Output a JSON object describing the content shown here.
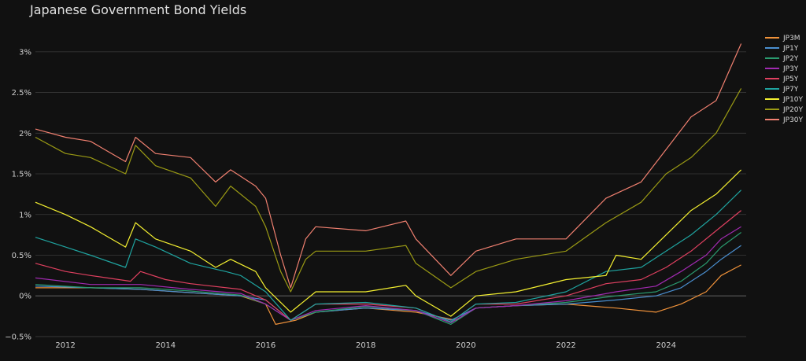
{
  "chart_data": {
    "type": "line",
    "title": "Japanese Government Bond Yields",
    "xlabel": "",
    "ylabel": "",
    "x_ticks": [
      "2012",
      "2014",
      "2016",
      "2018",
      "2020",
      "2022",
      "2024"
    ],
    "y_ticks": [
      "−0.5%",
      "0%",
      "0.5%",
      "1%",
      "1.5%",
      "2%",
      "2.5%",
      "3%"
    ],
    "xlim": [
      2011.4,
      2025.6
    ],
    "ylim": [
      -0.52,
      3.25
    ],
    "grid": true,
    "legend_position": "right",
    "series": [
      {
        "name": "JP3M",
        "color": "#f0923a",
        "points": [
          [
            2011.4,
            0.1
          ],
          [
            2012.5,
            0.1
          ],
          [
            2013.5,
            0.08
          ],
          [
            2014.5,
            0.04
          ],
          [
            2015.5,
            0.0
          ],
          [
            2016.0,
            -0.1
          ],
          [
            2016.2,
            -0.35
          ],
          [
            2016.6,
            -0.3
          ],
          [
            2017.0,
            -0.2
          ],
          [
            2018.0,
            -0.15
          ],
          [
            2019.0,
            -0.2
          ],
          [
            2019.8,
            -0.3
          ],
          [
            2020.2,
            -0.15
          ],
          [
            2021.0,
            -0.12
          ],
          [
            2022.0,
            -0.1
          ],
          [
            2023.0,
            -0.15
          ],
          [
            2023.8,
            -0.2
          ],
          [
            2024.3,
            -0.1
          ],
          [
            2024.8,
            0.05
          ],
          [
            2025.1,
            0.25
          ],
          [
            2025.5,
            0.38
          ]
        ]
      },
      {
        "name": "JP1Y",
        "color": "#4a8fd0",
        "points": [
          [
            2011.4,
            0.12
          ],
          [
            2012.5,
            0.1
          ],
          [
            2013.5,
            0.08
          ],
          [
            2014.5,
            0.04
          ],
          [
            2015.5,
            0.0
          ],
          [
            2016.0,
            -0.05
          ],
          [
            2016.5,
            -0.3
          ],
          [
            2017.0,
            -0.2
          ],
          [
            2018.0,
            -0.15
          ],
          [
            2019.0,
            -0.18
          ],
          [
            2019.7,
            -0.3
          ],
          [
            2020.2,
            -0.15
          ],
          [
            2021.0,
            -0.12
          ],
          [
            2022.0,
            -0.1
          ],
          [
            2023.0,
            -0.05
          ],
          [
            2023.8,
            0.0
          ],
          [
            2024.3,
            0.1
          ],
          [
            2024.8,
            0.3
          ],
          [
            2025.1,
            0.45
          ],
          [
            2025.5,
            0.62
          ]
        ]
      },
      {
        "name": "JP2Y",
        "color": "#2a9a6e",
        "points": [
          [
            2011.4,
            0.14
          ],
          [
            2012.5,
            0.1
          ],
          [
            2013.5,
            0.1
          ],
          [
            2014.5,
            0.06
          ],
          [
            2015.5,
            0.01
          ],
          [
            2016.0,
            -0.1
          ],
          [
            2016.5,
            -0.3
          ],
          [
            2017.0,
            -0.2
          ],
          [
            2018.0,
            -0.13
          ],
          [
            2019.0,
            -0.18
          ],
          [
            2019.7,
            -0.35
          ],
          [
            2020.2,
            -0.15
          ],
          [
            2021.0,
            -0.12
          ],
          [
            2022.0,
            -0.08
          ],
          [
            2023.0,
            0.0
          ],
          [
            2023.8,
            0.05
          ],
          [
            2024.3,
            0.18
          ],
          [
            2024.8,
            0.4
          ],
          [
            2025.1,
            0.6
          ],
          [
            2025.5,
            0.78
          ]
        ]
      },
      {
        "name": "JP3Y",
        "color": "#a02ab0",
        "points": [
          [
            2011.4,
            0.22
          ],
          [
            2012.5,
            0.14
          ],
          [
            2013.5,
            0.14
          ],
          [
            2014.5,
            0.08
          ],
          [
            2015.5,
            0.03
          ],
          [
            2016.0,
            -0.1
          ],
          [
            2016.5,
            -0.3
          ],
          [
            2017.0,
            -0.18
          ],
          [
            2018.0,
            -0.12
          ],
          [
            2019.0,
            -0.18
          ],
          [
            2019.7,
            -0.33
          ],
          [
            2020.2,
            -0.15
          ],
          [
            2021.0,
            -0.12
          ],
          [
            2022.0,
            -0.06
          ],
          [
            2023.0,
            0.05
          ],
          [
            2023.8,
            0.12
          ],
          [
            2024.3,
            0.3
          ],
          [
            2024.8,
            0.5
          ],
          [
            2025.1,
            0.7
          ],
          [
            2025.5,
            0.85
          ]
        ]
      },
      {
        "name": "JP5Y",
        "color": "#e04060",
        "points": [
          [
            2011.4,
            0.4
          ],
          [
            2012.0,
            0.3
          ],
          [
            2012.5,
            0.25
          ],
          [
            2013.3,
            0.18
          ],
          [
            2013.5,
            0.3
          ],
          [
            2014.0,
            0.2
          ],
          [
            2014.5,
            0.15
          ],
          [
            2015.5,
            0.08
          ],
          [
            2016.0,
            -0.05
          ],
          [
            2016.5,
            -0.3
          ],
          [
            2017.0,
            -0.1
          ],
          [
            2018.0,
            -0.1
          ],
          [
            2019.0,
            -0.15
          ],
          [
            2019.7,
            -0.32
          ],
          [
            2020.2,
            -0.1
          ],
          [
            2021.0,
            -0.1
          ],
          [
            2022.0,
            0.0
          ],
          [
            2022.8,
            0.15
          ],
          [
            2023.5,
            0.2
          ],
          [
            2024.0,
            0.35
          ],
          [
            2024.5,
            0.55
          ],
          [
            2025.0,
            0.8
          ],
          [
            2025.5,
            1.05
          ]
        ]
      },
      {
        "name": "JP7Y",
        "color": "#1fa4a0",
        "points": [
          [
            2011.4,
            0.72
          ],
          [
            2012.0,
            0.6
          ],
          [
            2012.5,
            0.5
          ],
          [
            2013.2,
            0.35
          ],
          [
            2013.4,
            0.7
          ],
          [
            2013.8,
            0.6
          ],
          [
            2014.5,
            0.4
          ],
          [
            2015.2,
            0.3
          ],
          [
            2015.5,
            0.25
          ],
          [
            2016.0,
            0.05
          ],
          [
            2016.5,
            -0.3
          ],
          [
            2017.0,
            -0.1
          ],
          [
            2018.0,
            -0.08
          ],
          [
            2019.0,
            -0.15
          ],
          [
            2019.7,
            -0.32
          ],
          [
            2020.2,
            -0.1
          ],
          [
            2021.0,
            -0.08
          ],
          [
            2022.0,
            0.05
          ],
          [
            2022.8,
            0.3
          ],
          [
            2023.5,
            0.35
          ],
          [
            2024.0,
            0.55
          ],
          [
            2024.5,
            0.75
          ],
          [
            2025.0,
            1.0
          ],
          [
            2025.5,
            1.3
          ]
        ]
      },
      {
        "name": "JP10Y",
        "color": "#f4f030",
        "points": [
          [
            2011.4,
            1.15
          ],
          [
            2012.0,
            1.0
          ],
          [
            2012.5,
            0.85
          ],
          [
            2013.2,
            0.6
          ],
          [
            2013.4,
            0.9
          ],
          [
            2013.8,
            0.7
          ],
          [
            2014.5,
            0.55
          ],
          [
            2015.0,
            0.35
          ],
          [
            2015.3,
            0.45
          ],
          [
            2015.8,
            0.3
          ],
          [
            2016.0,
            0.1
          ],
          [
            2016.5,
            -0.2
          ],
          [
            2017.0,
            0.05
          ],
          [
            2018.0,
            0.05
          ],
          [
            2018.8,
            0.13
          ],
          [
            2019.0,
            0.0
          ],
          [
            2019.7,
            -0.25
          ],
          [
            2020.2,
            0.0
          ],
          [
            2021.0,
            0.05
          ],
          [
            2022.0,
            0.2
          ],
          [
            2022.8,
            0.25
          ],
          [
            2023.0,
            0.5
          ],
          [
            2023.5,
            0.45
          ],
          [
            2024.0,
            0.75
          ],
          [
            2024.5,
            1.05
          ],
          [
            2025.0,
            1.25
          ],
          [
            2025.5,
            1.55
          ]
        ]
      },
      {
        "name": "JP20Y",
        "color": "#9a9a14",
        "points": [
          [
            2011.4,
            1.95
          ],
          [
            2012.0,
            1.75
          ],
          [
            2012.5,
            1.7
          ],
          [
            2013.2,
            1.5
          ],
          [
            2013.4,
            1.85
          ],
          [
            2013.8,
            1.6
          ],
          [
            2014.5,
            1.45
          ],
          [
            2015.0,
            1.1
          ],
          [
            2015.3,
            1.35
          ],
          [
            2015.8,
            1.1
          ],
          [
            2016.0,
            0.85
          ],
          [
            2016.3,
            0.3
          ],
          [
            2016.5,
            0.05
          ],
          [
            2016.8,
            0.45
          ],
          [
            2017.0,
            0.55
          ],
          [
            2018.0,
            0.55
          ],
          [
            2018.8,
            0.62
          ],
          [
            2019.0,
            0.4
          ],
          [
            2019.7,
            0.1
          ],
          [
            2020.2,
            0.3
          ],
          [
            2021.0,
            0.45
          ],
          [
            2022.0,
            0.55
          ],
          [
            2022.8,
            0.9
          ],
          [
            2023.5,
            1.15
          ],
          [
            2024.0,
            1.5
          ],
          [
            2024.5,
            1.7
          ],
          [
            2025.0,
            2.0
          ],
          [
            2025.5,
            2.55
          ]
        ]
      },
      {
        "name": "JP30Y",
        "color": "#f08070",
        "points": [
          [
            2011.4,
            2.05
          ],
          [
            2012.0,
            1.95
          ],
          [
            2012.5,
            1.9
          ],
          [
            2013.2,
            1.65
          ],
          [
            2013.4,
            1.95
          ],
          [
            2013.8,
            1.75
          ],
          [
            2014.5,
            1.7
          ],
          [
            2015.0,
            1.4
          ],
          [
            2015.3,
            1.55
          ],
          [
            2015.8,
            1.35
          ],
          [
            2016.0,
            1.2
          ],
          [
            2016.3,
            0.5
          ],
          [
            2016.5,
            0.1
          ],
          [
            2016.8,
            0.7
          ],
          [
            2017.0,
            0.85
          ],
          [
            2018.0,
            0.8
          ],
          [
            2018.8,
            0.92
          ],
          [
            2019.0,
            0.7
          ],
          [
            2019.7,
            0.25
          ],
          [
            2020.2,
            0.55
          ],
          [
            2021.0,
            0.7
          ],
          [
            2022.0,
            0.7
          ],
          [
            2022.8,
            1.2
          ],
          [
            2023.5,
            1.4
          ],
          [
            2024.0,
            1.8
          ],
          [
            2024.5,
            2.2
          ],
          [
            2025.0,
            2.4
          ],
          [
            2025.5,
            3.1
          ]
        ]
      }
    ]
  }
}
